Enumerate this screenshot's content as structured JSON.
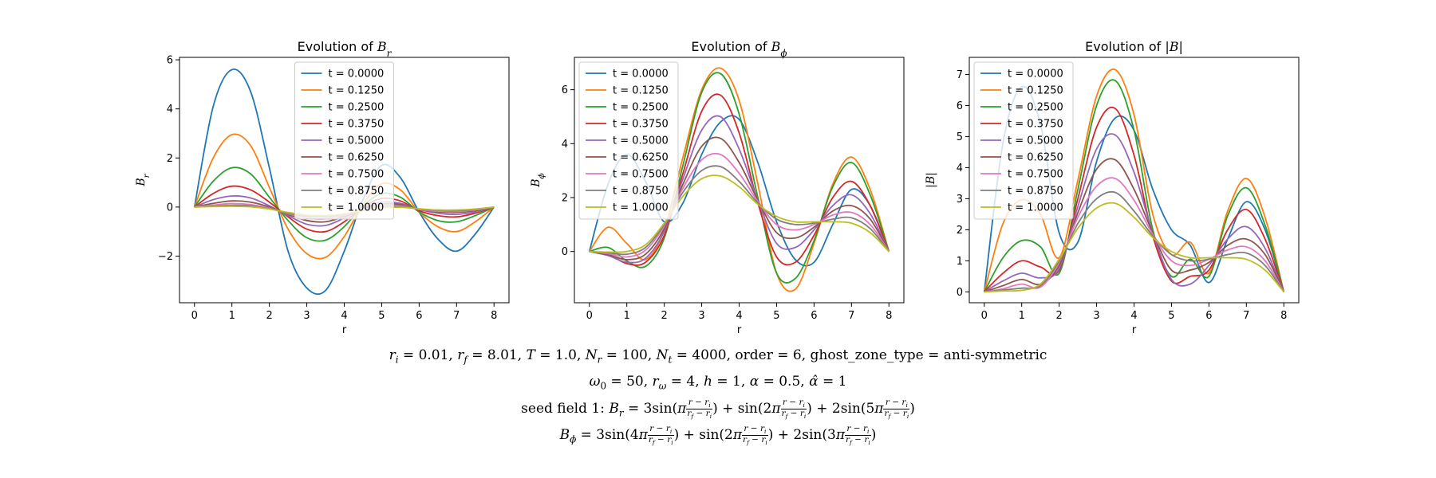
{
  "chart_data": [
    {
      "type": "line",
      "title": "Evolution of B_r",
      "title_parts": {
        "pre": "Evolution of ",
        "sym": "B",
        "sub": "r"
      },
      "xlabel": "r",
      "ylabel": "B_r",
      "ylabel_parts": {
        "sym": "B",
        "sub": "r"
      },
      "xlim": [
        -0.4,
        8.4
      ],
      "ylim": [
        -3.9,
        6.1
      ],
      "xticks": [
        0,
        1,
        2,
        3,
        4,
        5,
        6,
        7,
        8
      ],
      "yticks": [
        -2,
        0,
        2,
        4,
        6
      ],
      "legend": "upper-center",
      "grid": false,
      "x": [
        0,
        0.5,
        1,
        1.5,
        2,
        2.5,
        3,
        3.5,
        4,
        4.5,
        5,
        5.5,
        6,
        6.5,
        7,
        7.5,
        8
      ],
      "series": [
        {
          "name": "t = 0.0000",
          "values": [
            0,
            4.1,
            5.6,
            4.7,
            1.6,
            -1.8,
            -3.3,
            -3.4,
            -1.8,
            0.3,
            1.7,
            1.2,
            -0.2,
            -1.3,
            -1.8,
            -1.1,
            0
          ]
        },
        {
          "name": "t = 0.1250",
          "values": [
            0,
            2.0,
            2.95,
            2.5,
            0.8,
            -0.9,
            -1.9,
            -2.05,
            -1.2,
            0.1,
            0.95,
            0.7,
            -0.2,
            -0.8,
            -1.0,
            -0.6,
            0
          ]
        },
        {
          "name": "t = 0.2500",
          "values": [
            0,
            1.05,
            1.6,
            1.35,
            0.4,
            -0.55,
            -1.25,
            -1.35,
            -0.8,
            0.05,
            0.55,
            0.4,
            -0.2,
            -0.55,
            -0.6,
            -0.35,
            0
          ]
        },
        {
          "name": "t = 0.3750",
          "values": [
            0,
            0.55,
            0.85,
            0.7,
            0.2,
            -0.4,
            -0.9,
            -1.0,
            -0.6,
            0.0,
            0.35,
            0.25,
            -0.15,
            -0.35,
            -0.4,
            -0.25,
            0
          ]
        },
        {
          "name": "t = 0.5000",
          "values": [
            0,
            0.3,
            0.45,
            0.37,
            0.05,
            -0.35,
            -0.7,
            -0.75,
            -0.45,
            -0.05,
            0.2,
            0.15,
            -0.1,
            -0.25,
            -0.3,
            -0.2,
            0
          ]
        },
        {
          "name": "t = 0.6250",
          "values": [
            0,
            0.15,
            0.25,
            0.2,
            0.0,
            -0.3,
            -0.55,
            -0.6,
            -0.38,
            -0.07,
            0.12,
            0.1,
            -0.1,
            -0.2,
            -0.22,
            -0.15,
            0
          ]
        },
        {
          "name": "t = 0.7500",
          "values": [
            0,
            0.08,
            0.14,
            0.1,
            -0.05,
            -0.27,
            -0.45,
            -0.48,
            -0.33,
            -0.1,
            0.05,
            0.05,
            -0.1,
            -0.17,
            -0.18,
            -0.12,
            0
          ]
        },
        {
          "name": "t = 0.8750",
          "values": [
            0,
            0.04,
            0.07,
            0.05,
            -0.07,
            -0.25,
            -0.38,
            -0.4,
            -0.3,
            -0.12,
            0.0,
            0.02,
            -0.08,
            -0.14,
            -0.15,
            -0.1,
            0
          ]
        },
        {
          "name": "t = 1.0000",
          "values": [
            0,
            0.02,
            0.03,
            0.01,
            -0.08,
            -0.22,
            -0.33,
            -0.35,
            -0.28,
            -0.14,
            -0.03,
            -0.01,
            -0.07,
            -0.12,
            -0.12,
            -0.08,
            0
          ]
        }
      ]
    },
    {
      "type": "line",
      "title": "Evolution of B_phi",
      "title_parts": {
        "pre": "Evolution of ",
        "sym": "B",
        "sub": "ϕ"
      },
      "xlabel": "r",
      "ylabel": "B_phi",
      "ylabel_parts": {
        "sym": "B",
        "sub": "ϕ"
      },
      "xlim": [
        -0.4,
        8.4
      ],
      "ylim": [
        -1.9,
        7.2
      ],
      "xticks": [
        0,
        1,
        2,
        3,
        4,
        5,
        6,
        7,
        8
      ],
      "yticks": [
        0,
        2,
        4,
        6
      ],
      "legend": "upper-left",
      "grid": false,
      "x": [
        0,
        0.5,
        1,
        1.5,
        2,
        2.5,
        3,
        3.5,
        4,
        4.5,
        5,
        5.5,
        6,
        6.5,
        7,
        7.5,
        8
      ],
      "series": [
        {
          "name": "t = 0.0000",
          "values": [
            0,
            2.5,
            3.6,
            2.6,
            1.1,
            1.8,
            3.6,
            4.8,
            4.9,
            3.3,
            1.1,
            -0.3,
            -0.4,
            1.0,
            2.3,
            1.7,
            0
          ]
        },
        {
          "name": "t = 0.1250",
          "values": [
            0,
            0.9,
            0.3,
            -0.3,
            0.8,
            3.5,
            6.0,
            6.8,
            5.6,
            2.5,
            -0.8,
            -1.4,
            0.3,
            2.5,
            3.5,
            2.3,
            0
          ]
        },
        {
          "name": "t = 0.2500",
          "values": [
            0,
            0.15,
            -0.35,
            -0.55,
            0.5,
            3.2,
            5.9,
            6.6,
            5.1,
            2.0,
            -0.8,
            -1.0,
            0.4,
            2.4,
            3.3,
            2.1,
            0
          ]
        },
        {
          "name": "t = 0.3750",
          "values": [
            0,
            -0.1,
            -0.45,
            -0.4,
            0.6,
            2.9,
            5.2,
            5.8,
            4.4,
            1.8,
            -0.2,
            -0.4,
            0.6,
            2.0,
            2.6,
            1.7,
            0
          ]
        },
        {
          "name": "t = 0.5000",
          "values": [
            0,
            -0.15,
            -0.4,
            -0.25,
            0.75,
            2.7,
            4.5,
            5.0,
            3.8,
            1.9,
            0.3,
            0.15,
            0.8,
            1.7,
            2.1,
            1.4,
            0
          ]
        },
        {
          "name": "t = 0.6250",
          "values": [
            0,
            -0.12,
            -0.3,
            -0.1,
            0.85,
            2.5,
            3.9,
            4.2,
            3.3,
            1.9,
            0.7,
            0.5,
            0.9,
            1.5,
            1.7,
            1.2,
            0
          ]
        },
        {
          "name": "t = 0.7500",
          "values": [
            0,
            -0.08,
            -0.2,
            0.05,
            0.95,
            2.35,
            3.4,
            3.6,
            2.9,
            1.85,
            1.0,
            0.8,
            1.0,
            1.35,
            1.45,
            1.0,
            0
          ]
        },
        {
          "name": "t = 0.8750",
          "values": [
            0,
            -0.05,
            -0.1,
            0.15,
            1.0,
            2.2,
            3.0,
            3.15,
            2.6,
            1.8,
            1.2,
            1.0,
            1.05,
            1.2,
            1.25,
            0.85,
            0
          ]
        },
        {
          "name": "t = 1.0000",
          "values": [
            0,
            -0.02,
            0.0,
            0.25,
            1.05,
            2.05,
            2.7,
            2.8,
            2.4,
            1.75,
            1.3,
            1.1,
            1.1,
            1.1,
            1.05,
            0.7,
            0
          ]
        }
      ]
    },
    {
      "type": "line",
      "title": "Evolution of |B|",
      "title_parts": {
        "pre": "Evolution of ",
        "sym": "|B|",
        "sub": ""
      },
      "xlabel": "r",
      "ylabel": "|B|",
      "ylabel_parts": {
        "sym": "|B|",
        "sub": ""
      },
      "xlim": [
        -0.4,
        8.4
      ],
      "ylim": [
        -0.35,
        7.55
      ],
      "xticks": [
        0,
        1,
        2,
        3,
        4,
        5,
        6,
        7,
        8
      ],
      "yticks": [
        0,
        1,
        2,
        3,
        4,
        5,
        6,
        7
      ],
      "legend": "upper-left",
      "grid": false,
      "x": [
        0,
        0.5,
        1,
        1.5,
        2,
        2.5,
        3,
        3.5,
        4,
        4.5,
        5,
        5.5,
        6,
        6.5,
        7,
        7.5,
        8
      ],
      "series": [
        {
          "name": "t = 0.0000",
          "values": [
            0,
            4.8,
            6.6,
            5.4,
            1.9,
            1.6,
            4.2,
            5.6,
            5.2,
            3.3,
            2.0,
            1.5,
            0.3,
            1.7,
            2.9,
            2.0,
            0
          ]
        },
        {
          "name": "t = 0.1250",
          "values": [
            0,
            2.2,
            2.97,
            2.5,
            1.1,
            3.6,
            6.3,
            7.15,
            5.7,
            2.5,
            1.2,
            1.6,
            0.6,
            2.6,
            3.65,
            2.4,
            0
          ]
        },
        {
          "name": "t = 0.2500",
          "values": [
            0,
            1.1,
            1.65,
            1.45,
            0.6,
            3.3,
            6.0,
            6.8,
            5.2,
            2.0,
            0.5,
            1.05,
            0.5,
            2.45,
            3.35,
            2.15,
            0
          ]
        },
        {
          "name": "t = 0.3750",
          "values": [
            0,
            0.6,
            1.0,
            0.8,
            0.7,
            3.0,
            5.3,
            5.9,
            4.4,
            1.8,
            0.35,
            0.5,
            0.7,
            2.0,
            2.65,
            1.7,
            0
          ]
        },
        {
          "name": "t = 0.5000",
          "values": [
            0,
            0.35,
            0.6,
            0.45,
            0.75,
            2.75,
            4.6,
            5.05,
            3.85,
            1.9,
            0.4,
            0.25,
            0.85,
            1.7,
            2.1,
            1.4,
            0
          ]
        },
        {
          "name": "t = 0.6250",
          "values": [
            0,
            0.2,
            0.4,
            0.25,
            0.85,
            2.55,
            3.95,
            4.25,
            3.3,
            1.9,
            0.7,
            0.7,
            0.95,
            1.5,
            1.7,
            1.2,
            0
          ]
        },
        {
          "name": "t = 0.7500",
          "values": [
            0,
            0.1,
            0.25,
            0.15,
            0.95,
            2.4,
            3.4,
            3.65,
            2.95,
            1.85,
            1.0,
            0.85,
            1.05,
            1.35,
            1.45,
            1.0,
            0
          ]
        },
        {
          "name": "t = 0.8750",
          "values": [
            0,
            0.06,
            0.12,
            0.2,
            1.0,
            2.2,
            3.0,
            3.2,
            2.6,
            1.8,
            1.2,
            1.0,
            1.05,
            1.2,
            1.25,
            0.85,
            0
          ]
        },
        {
          "name": "t = 1.0000",
          "values": [
            0,
            0.03,
            0.05,
            0.25,
            1.05,
            2.05,
            2.7,
            2.85,
            2.4,
            1.75,
            1.3,
            1.1,
            1.1,
            1.1,
            1.05,
            0.7,
            0
          ]
        }
      ]
    }
  ],
  "colors": [
    "#1f77b4",
    "#ff7f0e",
    "#2ca02c",
    "#d62728",
    "#9467bd",
    "#8c564b",
    "#e377c2",
    "#7f7f7f",
    "#bcbd22"
  ],
  "caption": {
    "line1": "r_i = 0.01, r_f = 8.01, T = 1.0, N_r = 100, N_t = 4000, order = 6, ghost_zone_type = anti-symmetric",
    "line2": "omega_0 = 50, r_omega = 4, h = 1, alpha = 0.5, alpha_hat = 1",
    "line3": "seed field 1: B_r = 3sin(pi(r - r_i)/(r_f - r_i)) + sin(2pi(r - r_i)/(r_f - r_i)) + 2sin(5pi(r - r_i)/(r_f - r_i))",
    "line4": "B_phi = 3sin(4pi(r - r_i)/(r_f - r_i)) + sin(2pi(r - r_i)/(r_f - r_i)) + 2sin(3pi(r - r_i)/(r_f - r_i))"
  }
}
